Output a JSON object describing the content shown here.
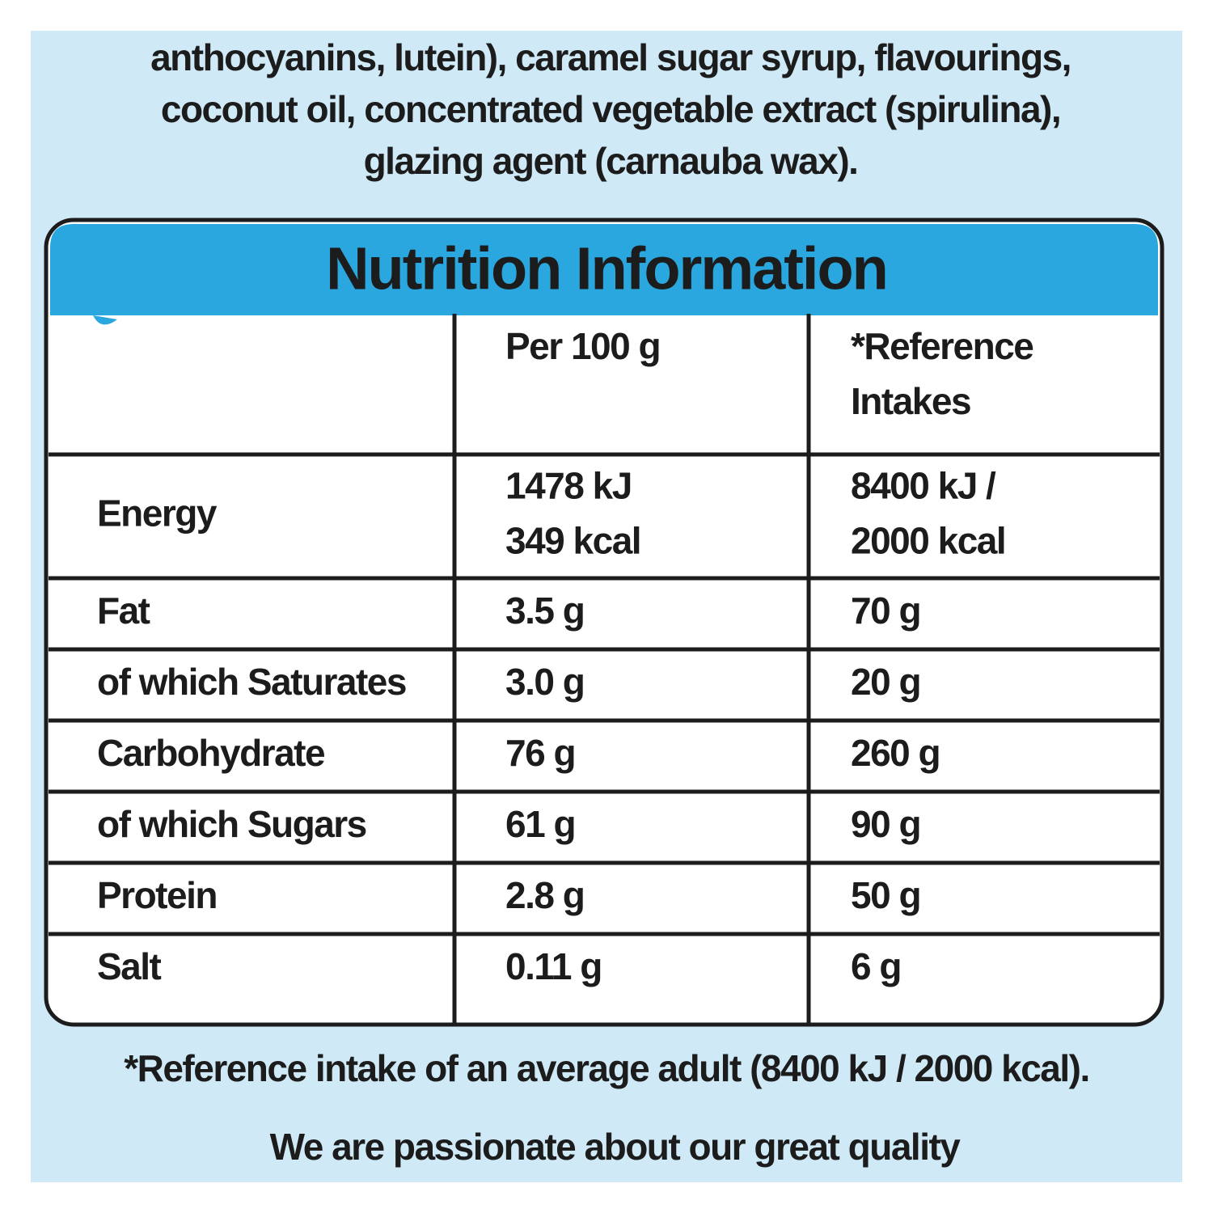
{
  "ingredients": [
    "anthocyanins, lutein), caramel sugar syrup, flavourings,",
    "coconut oil, concentrated vegetable extract (spirulina),",
    "glazing agent (carnauba wax)."
  ],
  "table": {
    "title": "Nutrition Information",
    "columns": [
      "Per 100 g",
      [
        "*Reference",
        "Intakes"
      ]
    ],
    "rows": [
      [
        "Energy",
        [
          "1478 kJ",
          "349 kcal"
        ],
        [
          "8400 kJ /",
          "2000 kcal"
        ]
      ],
      [
        "Fat",
        "3.5 g",
        "70 g"
      ],
      [
        "of which Saturates",
        "3.0 g",
        "20 g"
      ],
      [
        "Carbohydrate",
        "76 g",
        "260 g"
      ],
      [
        "of which Sugars",
        "61 g",
        "90 g"
      ],
      [
        "Protein",
        "2.8 g",
        "50 g"
      ],
      [
        "Salt",
        "0.11 g",
        "6 g"
      ]
    ]
  },
  "footnote": "*Reference intake of an average adult (8400 kJ / 2000 kcal).",
  "tagline": "We are passionate about our great quality"
}
